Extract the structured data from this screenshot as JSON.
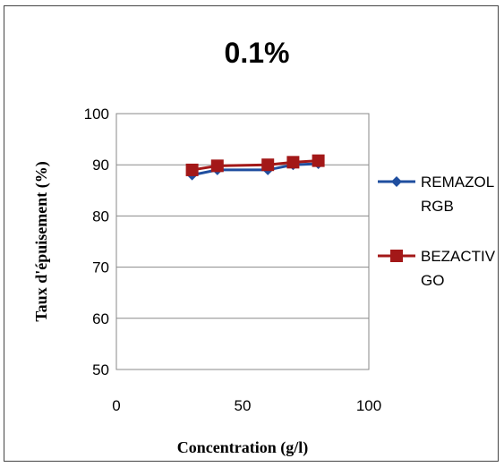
{
  "chart_data": {
    "type": "line",
    "title": "0.1%",
    "xlabel": "Concentration  (g/l)",
    "ylabel": "Taux d'épuisement (%)",
    "xlim": [
      0,
      100
    ],
    "ylim": [
      50,
      100
    ],
    "xticks": [
      "0",
      "50",
      "100"
    ],
    "yticks": [
      "50",
      "60",
      "70",
      "80",
      "90",
      "100"
    ],
    "grid": "horizontal",
    "legend_position": "right",
    "series": [
      {
        "name_lines": [
          "REMAZOL",
          "RGB"
        ],
        "color": "#1F4E9F",
        "marker": "diamond",
        "x": [
          30,
          40,
          60,
          70,
          80
        ],
        "y": [
          88.0,
          89.0,
          89.0,
          90.0,
          90.2
        ]
      },
      {
        "name_lines": [
          "BEZACTIV",
          "GO"
        ],
        "color": "#A31818",
        "marker": "square",
        "x": [
          30,
          40,
          60,
          70,
          80
        ],
        "y": [
          89.0,
          89.8,
          90.0,
          90.5,
          90.8
        ]
      }
    ]
  }
}
